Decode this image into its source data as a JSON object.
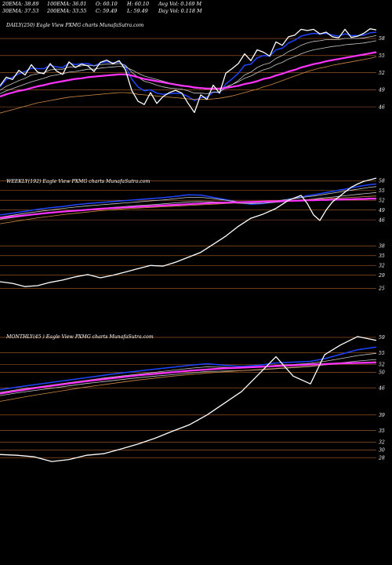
{
  "stats": {
    "ema20": "20EMA: 38.89",
    "ema100": "100EMA: 36.01",
    "open": "O: 60.10",
    "high": "H: 60.10",
    "avgvol": "Avg Vol: 0.169 M",
    "ema30": "30EMA: 37.53",
    "ema200": "200EMA: 33.55",
    "close": "C: 59.49",
    "low": "L: 59.49",
    "dayvol": "Day Vol: 0.118 M"
  },
  "colors": {
    "background": "#000000",
    "price": "#ffffff",
    "ema_fast": "#1e44ff",
    "ema_slow": "#ff33ff",
    "ema_grey": "#c8c8c8",
    "ema_brown": "#cc8844",
    "grid": "#b0622a"
  },
  "chart_data": [
    {
      "type": "line",
      "title": "DAILY(250) Eagle  View  PXMG charts MunafaSutra.com",
      "y_ticks": [
        "58",
        "55",
        "52",
        "49",
        "46"
      ],
      "y_tick_values": [
        58,
        55,
        52,
        49,
        46
      ],
      "ylim": [
        43.4,
        62
      ],
      "x": [
        0,
        8,
        16,
        24,
        32,
        40,
        48,
        56,
        64,
        72,
        80,
        88,
        96,
        104,
        112,
        120,
        128,
        136,
        144,
        152,
        160,
        168,
        176,
        184,
        192,
        200,
        208,
        216,
        224,
        232,
        240,
        248,
        256,
        264,
        272,
        280,
        288,
        296,
        304,
        312,
        320,
        328,
        336,
        344,
        352,
        360,
        368,
        376,
        384,
        392,
        400,
        408,
        416,
        424,
        432,
        440,
        448,
        456,
        464,
        472,
        480
      ],
      "series": [
        {
          "role": "price",
          "values": [
            49.7,
            51.2,
            50.8,
            52.4,
            51.6,
            53.4,
            52.1,
            51.8,
            53.6,
            52.3,
            51.7,
            53.9,
            52.9,
            53.5,
            53.2,
            52.2,
            53.8,
            54.2,
            53.6,
            54.1,
            52.5,
            48.9,
            47.0,
            46.4,
            48.5,
            46.6,
            47.8,
            48.5,
            48.9,
            48.4,
            46.6,
            45.0,
            48.1,
            47.3,
            49.8,
            48.4,
            51.9,
            52.7,
            53.6,
            55.3,
            54.1,
            56.0,
            55.6,
            54.9,
            57.4,
            56.8,
            58.3,
            58.6,
            59.6,
            59.4,
            59.6,
            58.8,
            59.1,
            58.3,
            58.1,
            59.6,
            58.2,
            58.4,
            58.9,
            59.7,
            59.5
          ]
        },
        {
          "role": "ema",
          "values": [
            49.5,
            50.8,
            51.2,
            51.8,
            52.2,
            52.8,
            52.7,
            52.7,
            53.3,
            53.0,
            52.9,
            53.7,
            53.4,
            53.6,
            53.6,
            53.2,
            53.7,
            53.9,
            53.7,
            53.9,
            53.1,
            50.9,
            49.5,
            48.8,
            49.0,
            48.4,
            48.2,
            48.3,
            48.4,
            48.3,
            47.8,
            47.1,
            47.6,
            47.7,
            48.6,
            48.5,
            50.0,
            50.9,
            51.9,
            53.3,
            53.5,
            54.6,
            55.0,
            54.9,
            56.0,
            56.3,
            57.2,
            57.7,
            58.4,
            58.7,
            58.9,
            58.8,
            58.9,
            58.6,
            58.4,
            58.8,
            58.5,
            58.5,
            58.6,
            59.0,
            59.1
          ]
        },
        {
          "role": "ema",
          "values": [
            48.9,
            49.6,
            50.1,
            50.6,
            51.0,
            51.6,
            51.8,
            52.0,
            52.5,
            52.6,
            52.6,
            53.0,
            53.0,
            53.2,
            53.3,
            53.2,
            53.4,
            53.5,
            53.5,
            53.6,
            53.3,
            52.1,
            51.2,
            50.5,
            50.2,
            49.8,
            49.5,
            49.3,
            49.2,
            49.1,
            48.8,
            48.4,
            48.4,
            48.3,
            48.6,
            48.6,
            49.3,
            49.9,
            50.6,
            51.6,
            52.1,
            52.9,
            53.4,
            53.7,
            54.5,
            55.0,
            55.7,
            56.2,
            56.8,
            57.2,
            57.5,
            57.6,
            57.8,
            57.8,
            57.8,
            58.0,
            58.0,
            58.0,
            58.1,
            58.3,
            58.5
          ]
        },
        {
          "role": "ema",
          "values": [
            48.3,
            48.8,
            49.2,
            49.6,
            50.0,
            50.4,
            50.7,
            51.0,
            51.4,
            51.6,
            51.8,
            52.1,
            52.2,
            52.4,
            52.6,
            52.6,
            52.8,
            52.9,
            53.0,
            53.1,
            53.0,
            52.5,
            51.9,
            51.4,
            51.1,
            50.8,
            50.5,
            50.2,
            50.0,
            49.8,
            49.6,
            49.3,
            49.2,
            49.1,
            49.2,
            49.1,
            49.5,
            49.9,
            50.4,
            51.0,
            51.4,
            52.0,
            52.5,
            52.8,
            53.4,
            53.8,
            54.4,
            54.8,
            55.3,
            55.7,
            56.0,
            56.2,
            56.4,
            56.6,
            56.7,
            56.9,
            57.0,
            57.1,
            57.2,
            57.4,
            57.6
          ]
        },
        {
          "role": "ema",
          "values": [
            44.9,
            45.2,
            45.5,
            45.8,
            46.1,
            46.4,
            46.7,
            46.9,
            47.1,
            47.3,
            47.5,
            47.7,
            47.8,
            47.9,
            48.0,
            48.1,
            48.2,
            48.3,
            48.4,
            48.5,
            48.5,
            48.4,
            48.2,
            48.1,
            48.0,
            47.9,
            47.8,
            47.7,
            47.6,
            47.5,
            47.4,
            47.3,
            47.3,
            47.3,
            47.4,
            47.5,
            47.7,
            47.9,
            48.2,
            48.5,
            48.8,
            49.1,
            49.5,
            49.8,
            50.2,
            50.6,
            51.0,
            51.4,
            51.8,
            52.2,
            52.5,
            52.8,
            53.0,
            53.3,
            53.5,
            53.7,
            53.9,
            54.1,
            54.3,
            54.5,
            54.8
          ]
        },
        {
          "role": "ema",
          "values": [
            47.8,
            48.2,
            48.5,
            48.8,
            49.0,
            49.3,
            49.6,
            49.8,
            50.1,
            50.3,
            50.5,
            50.7,
            50.9,
            51.0,
            51.2,
            51.3,
            51.4,
            51.5,
            51.6,
            51.7,
            51.7,
            51.5,
            51.2,
            50.9,
            50.7,
            50.5,
            50.3,
            50.1,
            49.9,
            49.7,
            49.6,
            49.4,
            49.3,
            49.2,
            49.2,
            49.2,
            49.3,
            49.5,
            49.7,
            50.0,
            50.2,
            50.5,
            50.9,
            51.1,
            51.5,
            51.8,
            52.2,
            52.5,
            52.9,
            53.2,
            53.5,
            53.7,
            54.0,
            54.2,
            54.4,
            54.6,
            54.8,
            55.0,
            55.2,
            55.4,
            55.6
          ]
        }
      ]
    },
    {
      "type": "line",
      "title": "WEEKLY(192) Eagle  View  PXMG charts MunafaSutra.com",
      "y_ticks": [
        "58",
        "55",
        "52",
        "49",
        "46",
        "38",
        "35",
        "32",
        "29",
        "25"
      ],
      "y_tick_values": [
        58,
        55,
        52,
        49,
        46,
        38,
        35,
        32,
        29,
        25
      ],
      "ylim": [
        20.5,
        60
      ],
      "x": [
        0,
        16,
        32,
        48,
        64,
        80,
        96,
        112,
        128,
        144,
        160,
        176,
        192,
        208,
        224,
        240,
        256,
        272,
        288,
        304,
        320,
        336,
        352,
        368,
        384,
        392,
        400,
        408,
        416,
        424,
        432,
        440,
        448,
        456,
        464,
        472,
        480
      ],
      "series": [
        {
          "role": "price",
          "values": [
            27.0,
            26.5,
            25.5,
            25.8,
            26.8,
            27.5,
            28.5,
            29.2,
            28.2,
            29.0,
            30.0,
            31.0,
            32.0,
            31.8,
            33.0,
            34.5,
            36.0,
            38.5,
            41.0,
            44.0,
            46.5,
            47.8,
            49.5,
            52.0,
            53.5,
            51.0,
            47.5,
            45.8,
            49.0,
            51.5,
            53.0,
            54.5,
            56.0,
            57.0,
            57.8,
            58.3,
            58.8
          ]
        },
        {
          "role": "ema",
          "values": [
            47.5,
            48.0,
            48.6,
            49.2,
            49.7,
            50.1,
            50.6,
            51.0,
            51.3,
            51.6,
            51.9,
            52.2,
            52.5,
            52.8,
            53.2,
            53.7,
            53.6,
            52.9,
            52.2,
            51.4,
            50.8,
            51.0,
            51.6,
            52.3,
            53.0,
            53.4,
            53.7,
            54.0,
            54.4,
            54.7,
            55.1,
            55.4,
            55.8,
            56.2,
            56.5,
            56.8,
            57.0
          ]
        },
        {
          "role": "ema",
          "values": [
            46.8,
            47.4,
            48.0,
            48.5,
            49.0,
            49.5,
            49.9,
            50.3,
            50.6,
            50.9,
            51.2,
            51.5,
            51.8,
            52.1,
            52.5,
            52.9,
            52.9,
            52.5,
            52.0,
            51.5,
            51.2,
            51.4,
            51.8,
            52.3,
            52.8,
            53.1,
            53.3,
            53.6,
            53.9,
            54.2,
            54.5,
            54.8,
            55.1,
            55.4,
            55.7,
            56.0,
            56.2
          ]
        },
        {
          "role": "ema",
          "values": [
            46.2,
            46.7,
            47.2,
            47.7,
            48.1,
            48.5,
            48.9,
            49.2,
            49.5,
            49.8,
            50.1,
            50.4,
            50.6,
            50.9,
            51.2,
            51.5,
            51.6,
            51.5,
            51.3,
            51.1,
            51.0,
            51.1,
            51.4,
            51.7,
            52.0,
            52.2,
            52.4,
            52.6,
            52.8,
            53.0,
            53.2,
            53.4,
            53.6,
            53.8,
            54.0,
            54.2,
            54.4
          ]
        },
        {
          "role": "ema",
          "values": [
            44.8,
            45.4,
            46.0,
            46.6,
            47.1,
            47.6,
            48.0,
            48.4,
            48.8,
            49.1,
            49.4,
            49.6,
            49.8,
            50.0,
            50.2,
            50.4,
            50.6,
            50.8,
            51.0,
            51.2,
            51.3,
            51.5,
            51.7,
            51.9,
            52.1,
            52.2,
            52.3,
            52.4,
            52.5,
            52.6,
            52.7,
            52.8,
            52.9,
            53.0,
            53.1,
            53.2,
            53.3
          ]
        },
        {
          "role": "ema",
          "values": [
            46.6,
            47.0,
            47.4,
            47.8,
            48.2,
            48.5,
            48.8,
            49.1,
            49.4,
            49.6,
            49.8,
            50.0,
            50.2,
            50.4,
            50.6,
            50.8,
            51.0,
            51.2,
            51.3,
            51.4,
            51.5,
            51.6,
            51.7,
            51.8,
            51.9,
            52.0,
            52.0,
            52.1,
            52.1,
            52.2,
            52.2,
            52.3,
            52.3,
            52.4,
            52.4,
            52.5,
            52.5
          ]
        }
      ]
    },
    {
      "type": "line",
      "title": "MONTHLY(45                  ) Eagle  View  PXMG charts MunafaSutra.com",
      "y_ticks": [
        "59",
        "55",
        "52",
        "50",
        "46",
        "39",
        "35",
        "32",
        "30",
        "28"
      ],
      "y_tick_values": [
        59,
        55,
        52,
        50,
        46,
        39,
        35,
        32,
        30,
        28
      ],
      "ylim": [
        25,
        61
      ],
      "x": [
        0,
        22,
        44,
        66,
        88,
        110,
        132,
        154,
        176,
        198,
        220,
        242,
        264,
        286,
        308,
        330,
        352,
        374,
        396,
        414,
        434,
        456,
        480
      ],
      "series": [
        {
          "role": "price",
          "values": [
            28.8,
            28.6,
            28.2,
            27.0,
            27.5,
            28.6,
            29.0,
            30.2,
            31.5,
            33.0,
            34.8,
            36.5,
            39.0,
            42.0,
            45.0,
            49.5,
            54.0,
            49.0,
            47.0,
            54.5,
            57.0,
            59.2,
            58.2
          ]
        },
        {
          "role": "ema",
          "values": [
            45.5,
            46.2,
            46.8,
            47.4,
            48.0,
            48.6,
            49.2,
            49.8,
            50.3,
            50.8,
            51.3,
            51.8,
            52.2,
            51.8,
            51.5,
            51.8,
            52.4,
            52.6,
            52.8,
            53.5,
            54.6,
            55.8,
            56.5
          ]
        },
        {
          "role": "ema",
          "values": [
            44.8,
            45.5,
            46.1,
            46.7,
            47.3,
            47.9,
            48.5,
            49.0,
            49.5,
            50.0,
            50.5,
            51.0,
            51.4,
            51.3,
            51.2,
            51.4,
            51.8,
            52.0,
            52.3,
            52.8,
            53.5,
            54.3,
            54.9
          ]
        },
        {
          "role": "ema",
          "values": [
            44.0,
            44.7,
            45.3,
            45.9,
            46.5,
            47.1,
            47.6,
            48.1,
            48.6,
            49.0,
            49.4,
            49.8,
            50.2,
            50.3,
            50.4,
            50.6,
            50.9,
            51.2,
            51.5,
            51.9,
            52.4,
            52.9,
            53.3
          ]
        },
        {
          "role": "ema",
          "values": [
            42.5,
            43.3,
            44.1,
            44.8,
            45.5,
            46.2,
            46.8,
            47.4,
            48.0,
            48.5,
            49.0,
            49.4,
            49.8,
            50.1,
            50.4,
            50.7,
            51.0,
            51.3,
            51.6,
            51.9,
            52.2,
            52.5,
            52.7
          ]
        },
        {
          "role": "ema",
          "values": [
            44.5,
            45.2,
            45.9,
            46.5,
            47.1,
            47.7,
            48.2,
            48.7,
            49.2,
            49.6,
            50.0,
            50.4,
            50.7,
            51.0,
            51.2,
            51.4,
            51.6,
            51.8,
            52.0,
            52.1,
            52.3,
            52.4,
            52.5
          ]
        }
      ]
    }
  ]
}
